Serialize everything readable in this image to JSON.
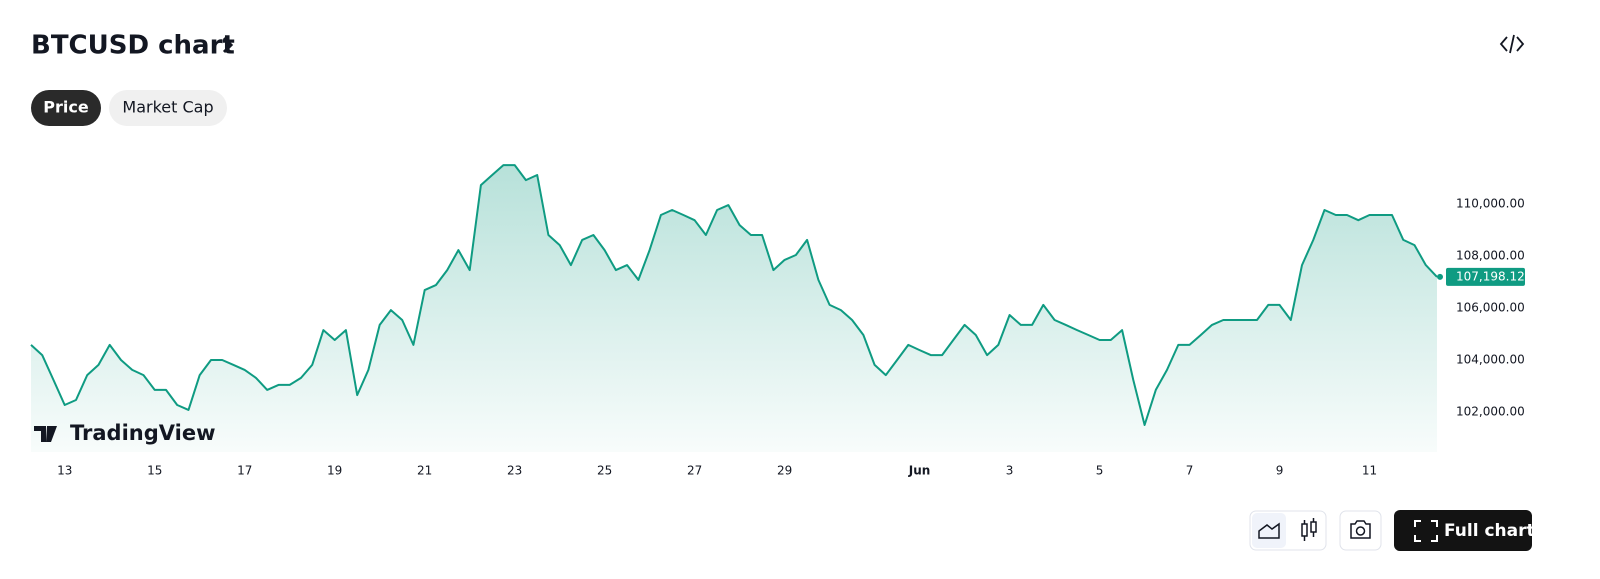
{
  "header": {
    "title": "BTCUSD chart"
  },
  "tabs": [
    "Price",
    "Market Cap"
  ],
  "watermark": "TradingView",
  "toolbar": {
    "full_chart": "Full chart"
  },
  "chart_data": {
    "type": "area",
    "color": "#0f9b82",
    "categories": [
      null,
      null,
      null,
      "13",
      null,
      null,
      null,
      null,
      null,
      null,
      null,
      "15",
      null,
      null,
      null,
      null,
      null,
      null,
      null,
      "17",
      null,
      null,
      null,
      null,
      null,
      null,
      null,
      "19",
      null,
      null,
      null,
      null,
      null,
      null,
      null,
      "21",
      null,
      null,
      null,
      null,
      null,
      null,
      null,
      "23",
      null,
      null,
      null,
      null,
      null,
      null,
      null,
      "25",
      null,
      null,
      null,
      null,
      null,
      null,
      null,
      "27",
      null,
      null,
      null,
      null,
      null,
      null,
      null,
      "29",
      null,
      null,
      null,
      null,
      null,
      null,
      null,
      null,
      null,
      null,
      null,
      "Jun",
      null,
      null,
      null,
      null,
      null,
      null,
      null,
      "3",
      null,
      null,
      null,
      null,
      null,
      null,
      null,
      "5",
      null,
      null,
      null,
      null,
      null,
      null,
      null,
      "7",
      null,
      null,
      null,
      null,
      null,
      null,
      null,
      "9",
      null,
      null,
      null,
      null,
      null,
      null,
      null,
      "11",
      null,
      null,
      null,
      null,
      null,
      null
    ],
    "values": [
      104580,
      104190,
      103230,
      102270,
      102460,
      103420,
      103810,
      104580,
      104000,
      103620,
      103420,
      102850,
      102850,
      102270,
      102080,
      103420,
      104000,
      104000,
      103810,
      103620,
      103310,
      102850,
      103040,
      103040,
      103310,
      103810,
      105150,
      104770,
      105150,
      102650,
      103620,
      105350,
      105920,
      105540,
      104580,
      106690,
      106880,
      107460,
      108230,
      107460,
      110730,
      111120,
      111500,
      111500,
      110920,
      111120,
      108810,
      108420,
      107650,
      108620,
      108810,
      108230,
      107460,
      107650,
      107080,
      108230,
      109580,
      109770,
      109580,
      109380,
      108810,
      109770,
      109960,
      109190,
      108810,
      108810,
      107460,
      107850,
      108040,
      108620,
      107080,
      106120,
      105920,
      105540,
      104960,
      103810,
      103420,
      104000,
      104580,
      104380,
      104190,
      104190,
      104770,
      105350,
      104960,
      104190,
      104580,
      105730,
      105350,
      105350,
      106120,
      105540,
      105350,
      105150,
      104960,
      104770,
      104770,
      105150,
      103230,
      101500,
      102850,
      103620,
      104580,
      104580,
      104960,
      105350,
      105540,
      105540,
      105540,
      105540,
      106120,
      106120,
      105540,
      107650,
      108620,
      109770,
      109580,
      109580,
      109380,
      109580,
      109580,
      109580,
      108620,
      108420,
      107650,
      107198.12
    ],
    "ylim": [
      100460,
      112080
    ],
    "yticks": [
      {
        "value": 102000,
        "label": "102,000.00"
      },
      {
        "value": 104000,
        "label": "104,000.00"
      },
      {
        "value": 106000,
        "label": "106,000.00"
      },
      {
        "value": 108000,
        "label": "108,000.00"
      },
      {
        "value": 110000,
        "label": "110,000.00"
      }
    ],
    "last_price": {
      "value": 107198.12,
      "label": "107,198.12"
    }
  }
}
